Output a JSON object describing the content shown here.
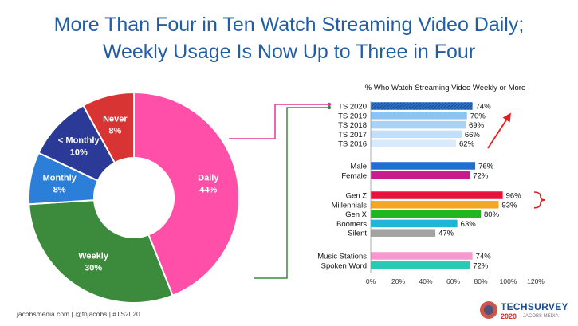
{
  "title_line1": "More Than Four in Ten Watch Streaming Video Daily;",
  "title_line2": "Weekly Usage Is Now Up to Three in Four",
  "footer": "jacobsmedia.com  |  @fnjacobs  |  #TS2020",
  "logo": {
    "word": "TECHSURVEY",
    "year": "2020",
    "sub": "JACOBS MEDIA"
  },
  "chart_data": [
    {
      "type": "pie",
      "variant": "donut",
      "categories": [
        "Daily",
        "Weekly",
        "Monthly",
        "< Monthly",
        "Never"
      ],
      "values": [
        44,
        30,
        8,
        10,
        8
      ],
      "labels": [
        "Daily\n44%",
        "Weekly\n30%",
        "Monthly\n8%",
        "< Monthly\n10%",
        "Never\n8%"
      ],
      "colors": [
        "#ff4fa8",
        "#3c8a3c",
        "#2b7fd9",
        "#2b3a96",
        "#d93434"
      ]
    },
    {
      "type": "bar",
      "orientation": "horizontal",
      "title": "% Who Watch Streaming Video Weekly or More",
      "xlim": [
        0,
        120
      ],
      "xticks": [
        "0%",
        "20%",
        "40%",
        "60%",
        "80%",
        "100%",
        "120%"
      ],
      "groups": [
        {
          "categories": [
            "TS 2020",
            "TS 2019",
            "TS 2018",
            "TS 2017",
            "TS 2016"
          ],
          "values": [
            74,
            70,
            69,
            66,
            62
          ],
          "colors": [
            "#2e6fc7",
            "#8cc3f2",
            "#a9d2f5",
            "#c2def8",
            "#d9eafb"
          ]
        },
        {
          "categories": [
            "Male",
            "Female"
          ],
          "values": [
            76,
            72
          ],
          "colors": [
            "#1f6fd1",
            "#c81b8c"
          ]
        },
        {
          "categories": [
            "Gen Z",
            "Millennials",
            "Gen X",
            "Boomers",
            "Silent"
          ],
          "values": [
            96,
            93,
            80,
            63,
            47
          ],
          "colors": [
            "#e8123c",
            "#f5a623",
            "#1fb61f",
            "#1fb4d8",
            "#a3a3a3"
          ]
        },
        {
          "categories": [
            "Music Stations",
            "Spoken Word"
          ],
          "values": [
            74,
            72
          ],
          "colors": [
            "#f59ad0",
            "#29c9b4"
          ]
        }
      ],
      "value_labels": [
        "74%",
        "70%",
        "69%",
        "66%",
        "62%",
        "76%",
        "72%",
        "96%",
        "93%",
        "80%",
        "63%",
        "47%",
        "74%",
        "72%"
      ]
    }
  ]
}
